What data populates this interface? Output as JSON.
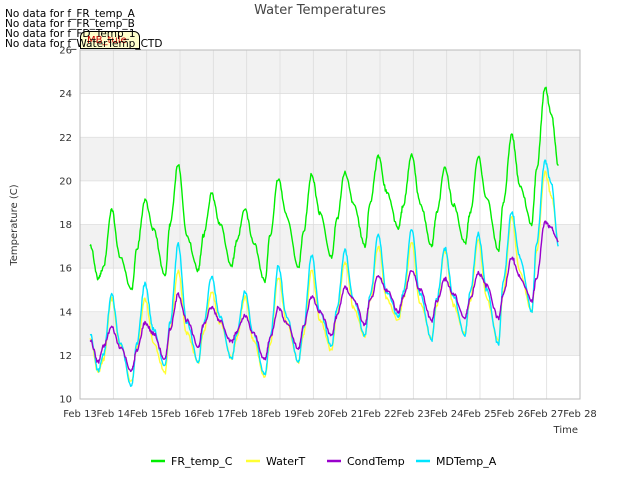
{
  "nodata_messages": [
    "No data for f_FR_temp_A",
    "No data for f_FR_temp_B",
    "No data for f_FD_Temp_1",
    "No data for f_WaterTemp_CTD"
  ],
  "tag_label": "MB_tule",
  "colors": {
    "FR_temp_C": "#00ee00",
    "WaterT": "#ffff33",
    "CondTemp": "#9900cc",
    "MDTemp_A": "#00e5ff",
    "band": "#f2f2f2",
    "grid": "#dddddd"
  },
  "chart_data": {
    "type": "line",
    "title": "Water Temperatures",
    "xlabel": "Time",
    "ylabel": "Temperature (C)",
    "xlim": [
      13,
      28
    ],
    "ylim": [
      10,
      26
    ],
    "x_ticks": [
      13,
      14,
      15,
      16,
      17,
      18,
      19,
      20,
      21,
      22,
      23,
      24,
      25,
      26,
      27,
      28
    ],
    "x_tick_labels": [
      "Feb 13",
      "Feb 14",
      "Feb 15",
      "Feb 16",
      "Feb 17",
      "Feb 18",
      "Feb 19",
      "Feb 20",
      "Feb 21",
      "Feb 22",
      "Feb 23",
      "Feb 24",
      "Feb 25",
      "Feb 26",
      "Feb 27",
      "Feb 28"
    ],
    "y_ticks": [
      10,
      12,
      14,
      16,
      18,
      20,
      22,
      24,
      26
    ],
    "legend_position": "bottom",
    "x": [
      13.3,
      13.55,
      13.7,
      13.95,
      14.2,
      14.55,
      14.7,
      14.95,
      15.2,
      15.55,
      15.7,
      15.95,
      16.2,
      16.55,
      16.7,
      16.95,
      17.2,
      17.55,
      17.7,
      17.95,
      18.2,
      18.55,
      18.7,
      18.95,
      19.2,
      19.55,
      19.7,
      19.95,
      20.2,
      20.55,
      20.7,
      20.95,
      21.2,
      21.55,
      21.7,
      21.95,
      22.2,
      22.55,
      22.7,
      22.95,
      23.2,
      23.55,
      23.7,
      23.95,
      24.2,
      24.55,
      24.7,
      24.95,
      25.2,
      25.55,
      25.7,
      25.95,
      26.2,
      26.55,
      26.7,
      26.95,
      27.15,
      27.35
    ],
    "series": [
      {
        "name": "FR_temp_C",
        "values": [
          17.1,
          15.5,
          16.0,
          18.7,
          16.5,
          15.0,
          16.8,
          19.1,
          17.8,
          15.6,
          18.0,
          20.8,
          17.5,
          15.9,
          17.5,
          19.4,
          18.0,
          16.1,
          17.2,
          18.7,
          17.2,
          15.4,
          17.5,
          20.1,
          18.4,
          16.0,
          17.6,
          20.3,
          18.5,
          16.5,
          18.2,
          20.4,
          19.0,
          17.0,
          19.0,
          21.1,
          19.5,
          17.8,
          18.9,
          21.2,
          19.0,
          17.0,
          18.5,
          20.6,
          18.9,
          17.1,
          18.5,
          21.1,
          19.2,
          16.8,
          19.0,
          22.1,
          19.8,
          18.0,
          20.5,
          24.3,
          23.0,
          20.7
        ]
      },
      {
        "name": "WaterT",
        "values": [
          12.8,
          11.2,
          11.8,
          14.6,
          12.5,
          10.8,
          12.3,
          14.6,
          12.6,
          11.2,
          13.2,
          15.9,
          13.0,
          11.7,
          13.0,
          14.9,
          13.5,
          11.9,
          12.8,
          14.7,
          12.7,
          11.0,
          12.5,
          15.6,
          13.5,
          11.7,
          12.9,
          15.9,
          13.6,
          12.2,
          13.8,
          16.3,
          14.2,
          12.9,
          14.5,
          17.0,
          14.6,
          13.6,
          14.6,
          17.2,
          14.4,
          12.8,
          14.3,
          16.8,
          14.3,
          13.0,
          14.5,
          17.3,
          14.6,
          12.7,
          14.9,
          18.3,
          15.8,
          14.0,
          16.8,
          20.4,
          19.3,
          17.2
        ]
      },
      {
        "name": "CondTemp",
        "values": [
          12.7,
          11.7,
          12.4,
          13.3,
          12.4,
          11.3,
          12.2,
          13.5,
          13.0,
          11.8,
          13.2,
          14.8,
          13.6,
          12.4,
          13.4,
          14.2,
          13.6,
          12.6,
          13.1,
          13.8,
          13.0,
          11.8,
          12.8,
          14.2,
          13.5,
          12.3,
          13.3,
          14.7,
          14.0,
          12.9,
          13.8,
          15.1,
          14.6,
          13.4,
          14.5,
          15.6,
          15.0,
          14.0,
          14.7,
          15.9,
          15.0,
          13.6,
          14.5,
          15.5,
          14.8,
          13.7,
          14.6,
          15.8,
          15.2,
          13.7,
          14.8,
          16.5,
          15.6,
          14.5,
          15.6,
          18.1,
          17.8,
          17.2
        ]
      },
      {
        "name": "MDTemp_A",
        "values": [
          13.0,
          11.3,
          12.0,
          14.8,
          12.6,
          10.6,
          12.5,
          15.3,
          13.2,
          11.5,
          13.5,
          17.1,
          13.5,
          11.7,
          13.4,
          15.6,
          13.8,
          11.8,
          13.0,
          14.9,
          13.0,
          11.1,
          12.8,
          16.1,
          13.8,
          11.7,
          13.2,
          16.6,
          14.0,
          12.4,
          14.1,
          16.8,
          14.6,
          12.9,
          14.7,
          17.5,
          14.9,
          13.8,
          14.9,
          17.8,
          14.8,
          12.7,
          14.6,
          16.9,
          14.7,
          12.9,
          14.9,
          17.6,
          15.0,
          12.5,
          15.4,
          18.6,
          16.5,
          14.0,
          17.2,
          20.9,
          19.8,
          17.0
        ]
      }
    ]
  }
}
